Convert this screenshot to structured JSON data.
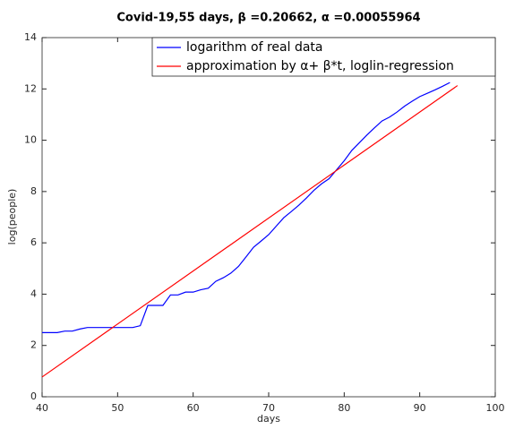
{
  "chart_data": {
    "type": "line",
    "title": "Covid-19,55 days,      β =0.20662,      α =0.00055964",
    "xlabel": "days",
    "ylabel": "log(people)",
    "xlim": [
      40,
      100
    ],
    "xticks": [
      40,
      50,
      60,
      70,
      80,
      90,
      100
    ],
    "ylim": [
      0,
      14
    ],
    "yticks": [
      0,
      2,
      4,
      6,
      8,
      10,
      12,
      14
    ],
    "legend_position": "top-right",
    "series": [
      {
        "name": "logarithm of real data",
        "color": "#0000ff",
        "x": [
          40,
          41,
          42,
          43,
          44,
          45,
          46,
          47,
          48,
          49,
          50,
          51,
          52,
          53,
          54,
          55,
          56,
          57,
          58,
          59,
          60,
          61,
          62,
          63,
          64,
          65,
          66,
          67,
          68,
          69,
          70,
          71,
          72,
          73,
          74,
          75,
          76,
          77,
          78,
          79,
          80,
          81,
          82,
          83,
          84,
          85,
          86,
          87,
          88,
          89,
          90,
          91,
          92,
          93,
          94
        ],
        "values": [
          2.5,
          2.5,
          2.5,
          2.56,
          2.56,
          2.64,
          2.7,
          2.7,
          2.7,
          2.7,
          2.7,
          2.7,
          2.7,
          2.77,
          3.56,
          3.56,
          3.56,
          3.97,
          3.97,
          4.08,
          4.08,
          4.17,
          4.23,
          4.5,
          4.64,
          4.82,
          5.08,
          5.45,
          5.83,
          6.07,
          6.32,
          6.65,
          6.98,
          7.22,
          7.47,
          7.75,
          8.05,
          8.3,
          8.5,
          8.85,
          9.2,
          9.6,
          9.9,
          10.2,
          10.48,
          10.75,
          10.9,
          11.1,
          11.33,
          11.52,
          11.7,
          11.83,
          11.96,
          12.1,
          12.25
        ]
      },
      {
        "name": "approximation by      α+ β*t, loglin-regression",
        "color": "#ff0000",
        "x": [
          40,
          95
        ],
        "values": [
          0.77,
          12.13
        ]
      }
    ]
  }
}
